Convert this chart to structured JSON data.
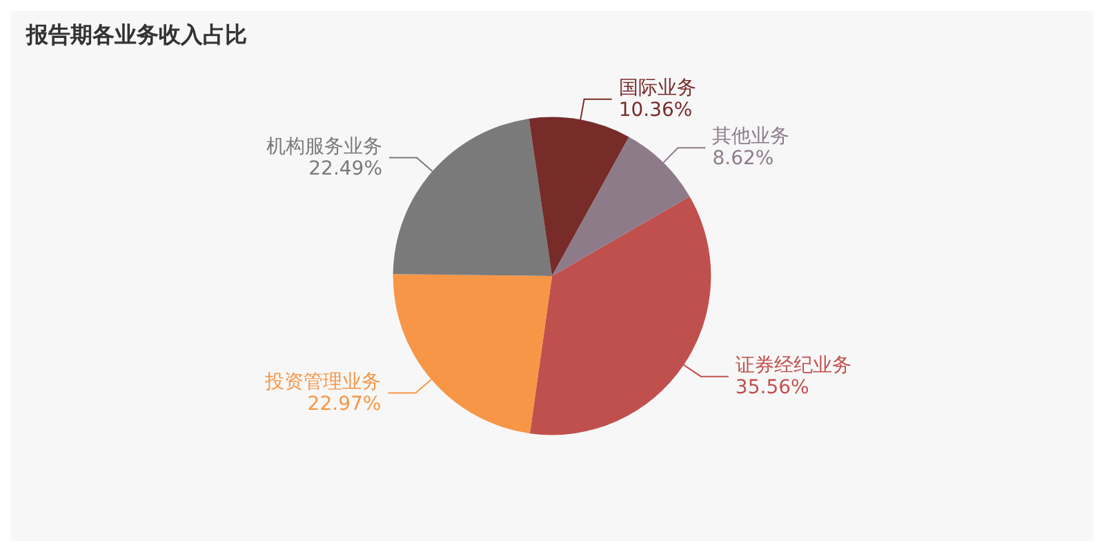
{
  "chart_data": {
    "type": "pie",
    "title": "报告期各业务收入占比",
    "categories": [
      "证券经纪业务",
      "投资管理业务",
      "机构服务业务",
      "国际业务",
      "其他业务"
    ],
    "values": [
      35.56,
      22.97,
      22.49,
      10.36,
      8.62
    ],
    "value_labels": [
      "35.56%",
      "22.97%",
      "22.49%",
      "10.36%",
      "8.62%"
    ],
    "colors": [
      "#c0504d",
      "#f79646",
      "#7a7a7a",
      "#772c2a",
      "#8d7b8a"
    ],
    "legend": false
  }
}
